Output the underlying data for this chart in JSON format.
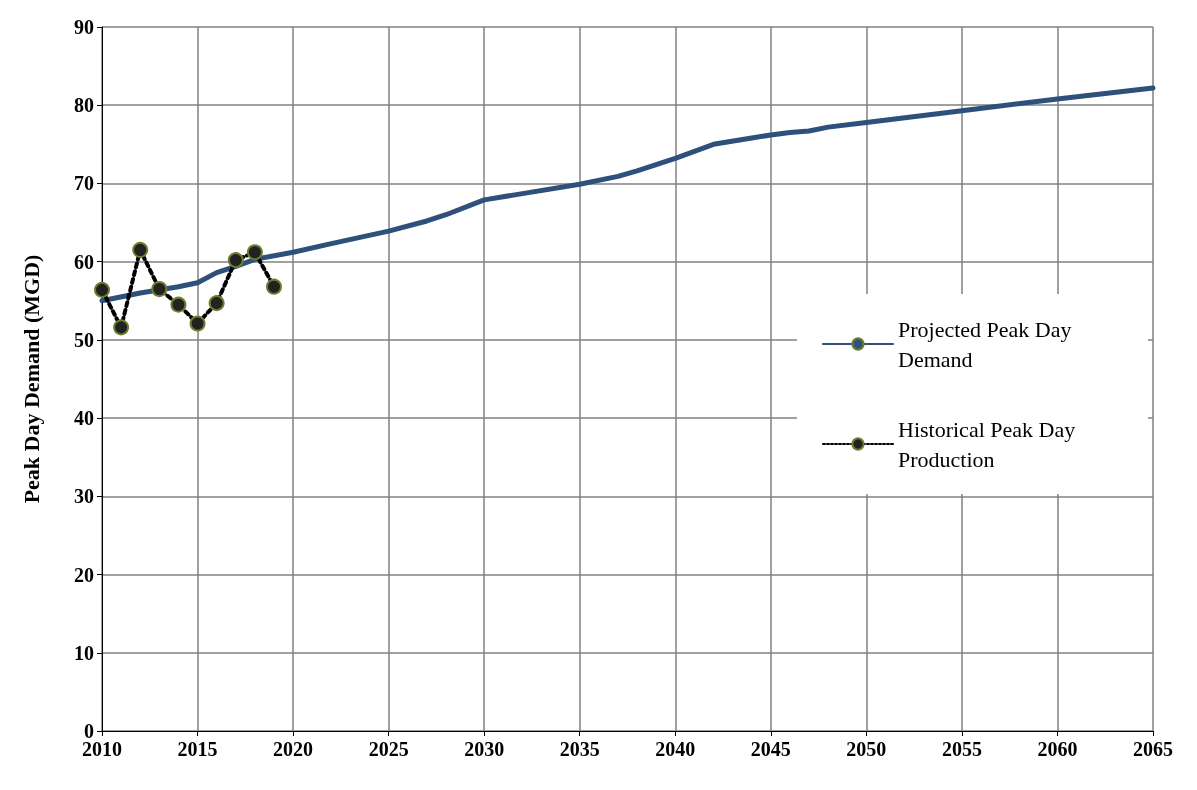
{
  "chart_data": {
    "type": "line",
    "ylabel": "Peak Day Demand (MGD)",
    "xlim": [
      2010,
      2065
    ],
    "xticks": [
      2010,
      2015,
      2020,
      2025,
      2030,
      2035,
      2040,
      2045,
      2050,
      2055,
      2060,
      2065
    ],
    "ylim": [
      0,
      90
    ],
    "yticks": [
      0,
      10,
      20,
      30,
      40,
      50,
      60,
      70,
      80,
      90
    ],
    "grid": true,
    "legend": "right",
    "series": [
      {
        "name": "Projected Peak Day Demand",
        "color": "#2e507a",
        "line_style": "solid",
        "marker": "none",
        "x": [
          2010,
          2012,
          2014,
          2015,
          2016,
          2017,
          2018,
          2020,
          2022,
          2025,
          2027,
          2028,
          2030,
          2032,
          2035,
          2037,
          2038,
          2040,
          2042,
          2044,
          2045,
          2046,
          2047,
          2048,
          2050,
          2055,
          2060,
          2065
        ],
        "values": [
          55.0,
          56.0,
          56.8,
          57.3,
          58.6,
          59.4,
          60.3,
          61.2,
          62.3,
          63.9,
          65.2,
          66.0,
          67.9,
          68.7,
          69.9,
          70.9,
          71.6,
          73.2,
          75.0,
          75.8,
          76.2,
          76.5,
          76.7,
          77.2,
          77.8,
          79.3,
          80.8,
          82.2
        ]
      },
      {
        "name": "Historical Peak Day Production",
        "color": "#222222",
        "line_style": "dotted",
        "marker": "circle",
        "x": [
          2010,
          2011,
          2012,
          2013,
          2014,
          2015,
          2016,
          2017,
          2018,
          2019
        ],
        "values": [
          56.4,
          51.6,
          61.5,
          56.5,
          54.5,
          52.1,
          54.7,
          60.2,
          61.2,
          56.8
        ]
      }
    ]
  }
}
